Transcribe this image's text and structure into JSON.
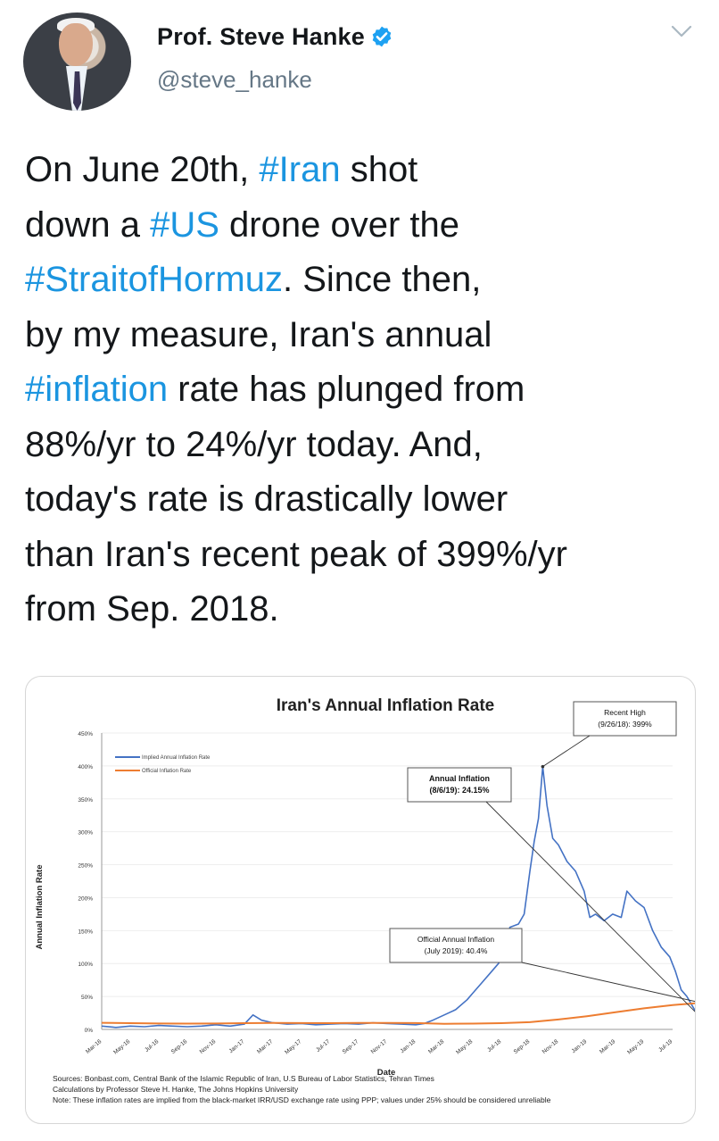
{
  "author": {
    "name": "Prof. Steve Hanke",
    "handle": "@steve_hanke",
    "verified": true,
    "avatar_icon": "profile-photo"
  },
  "menu_icon": "chevron-down-icon",
  "tweet": {
    "segments": [
      [
        {
          "t": "On June 20th, ",
          "h": false
        },
        {
          "t": "#Iran",
          "h": true
        },
        {
          "t": " shot",
          "h": false
        }
      ],
      [
        {
          "t": "down a ",
          "h": false
        },
        {
          "t": "#US",
          "h": true
        },
        {
          "t": " drone over the",
          "h": false
        }
      ],
      [
        {
          "t": "#StraitofHormuz",
          "h": true
        },
        {
          "t": ". Since then,",
          "h": false
        }
      ],
      [
        {
          "t": "by my measure, Iran's annual",
          "h": false
        }
      ],
      [
        {
          "t": "#inflation",
          "h": true
        },
        {
          "t": " rate has plunged from",
          "h": false
        }
      ],
      [
        {
          "t": "88%/yr to 24%/yr today. And,",
          "h": false
        }
      ],
      [
        {
          "t": "today's rate is drastically lower",
          "h": false
        }
      ],
      [
        {
          "t": "than Iran's recent peak of 399%/yr",
          "h": false
        }
      ],
      [
        {
          "t": "from Sep. 2018.",
          "h": false
        }
      ]
    ]
  },
  "colors": {
    "hashtag": "#1b95e0",
    "text": "#14171a",
    "muted": "#657786",
    "verified": "#1da1f2",
    "implied_series": "#4472c4",
    "official_series": "#ed7d31"
  },
  "chart_data": {
    "type": "line",
    "title": "Iran's Annual Inflation Rate",
    "xlabel": "Date",
    "ylabel": "Annual Inflation Rate",
    "ylim": [
      0,
      450
    ],
    "yticks": [
      "0%",
      "50%",
      "100%",
      "150%",
      "200%",
      "250%",
      "300%",
      "350%",
      "400%",
      "450%"
    ],
    "x_ticks": [
      "Mar-16",
      "May-16",
      "Jul-16",
      "Sep-16",
      "Nov-16",
      "Jan-17",
      "Mar-17",
      "May-17",
      "Jul-17",
      "Sep-17",
      "Nov-17",
      "Jan-18",
      "Mar-18",
      "May-18",
      "Jul-18",
      "Sep-18",
      "Nov-18",
      "Jan-19",
      "Mar-19",
      "May-19",
      "Jul-19"
    ],
    "legend_position": "top-left",
    "series": [
      {
        "name": "Implied Annual Inflation Rate",
        "color": "#4472c4",
        "points": [
          [
            0,
            5
          ],
          [
            0.5,
            3
          ],
          [
            1,
            5
          ],
          [
            1.5,
            4
          ],
          [
            2,
            6
          ],
          [
            2.5,
            5
          ],
          [
            3,
            4
          ],
          [
            3.5,
            5
          ],
          [
            4,
            7
          ],
          [
            4.5,
            5
          ],
          [
            5,
            8
          ],
          [
            5.3,
            22
          ],
          [
            5.6,
            14
          ],
          [
            6,
            10
          ],
          [
            6.5,
            8
          ],
          [
            7,
            9
          ],
          [
            7.5,
            7
          ],
          [
            8,
            8
          ],
          [
            8.5,
            9
          ],
          [
            9,
            8
          ],
          [
            9.5,
            10
          ],
          [
            10,
            9
          ],
          [
            10.5,
            8
          ],
          [
            11,
            7
          ],
          [
            11.3,
            9
          ],
          [
            11.6,
            14
          ],
          [
            12,
            22
          ],
          [
            12.4,
            30
          ],
          [
            12.8,
            45
          ],
          [
            13,
            55
          ],
          [
            13.3,
            70
          ],
          [
            13.6,
            85
          ],
          [
            13.9,
            100
          ],
          [
            14.1,
            115
          ],
          [
            14.3,
            155
          ],
          [
            14.6,
            160
          ],
          [
            14.8,
            175
          ],
          [
            15,
            240
          ],
          [
            15.15,
            285
          ],
          [
            15.3,
            320
          ],
          [
            15.45,
            399
          ],
          [
            15.6,
            340
          ],
          [
            15.8,
            290
          ],
          [
            16,
            280
          ],
          [
            16.3,
            255
          ],
          [
            16.6,
            240
          ],
          [
            16.9,
            210
          ],
          [
            17.1,
            170
          ],
          [
            17.3,
            175
          ],
          [
            17.6,
            165
          ],
          [
            17.9,
            175
          ],
          [
            18.2,
            170
          ],
          [
            18.4,
            210
          ],
          [
            18.7,
            195
          ],
          [
            19,
            185
          ],
          [
            19.3,
            150
          ],
          [
            19.6,
            125
          ],
          [
            19.9,
            110
          ],
          [
            20.1,
            88
          ],
          [
            20.3,
            60
          ],
          [
            20.5,
            50
          ],
          [
            20.7,
            35
          ],
          [
            20.85,
            24
          ],
          [
            21,
            18
          ]
        ]
      },
      {
        "name": "Official Inflation Rate",
        "color": "#ed7d31",
        "points": [
          [
            0,
            10
          ],
          [
            1,
            9.5
          ],
          [
            2,
            9
          ],
          [
            3,
            8.8
          ],
          [
            4,
            9
          ],
          [
            5,
            9.5
          ],
          [
            6,
            9.8
          ],
          [
            7,
            9.6
          ],
          [
            8,
            9.5
          ],
          [
            9,
            9.8
          ],
          [
            10,
            9.8
          ],
          [
            11,
            9.6
          ],
          [
            12,
            8.5
          ],
          [
            13,
            8.8
          ],
          [
            14,
            9.5
          ],
          [
            15,
            11
          ],
          [
            16,
            15
          ],
          [
            17,
            20
          ],
          [
            18,
            26
          ],
          [
            19,
            32
          ],
          [
            20,
            37
          ],
          [
            21,
            40.4
          ]
        ]
      }
    ],
    "annotations": [
      {
        "lines": [
          "Recent High",
          "(9/26/18): 399%"
        ],
        "x": 15.45,
        "y": 399
      },
      {
        "lines": [
          "Annual Inflation",
          "(8/6/19): 24.15%"
        ],
        "x": 20.85,
        "y": 24.15
      },
      {
        "lines": [
          "Official Annual Inflation",
          "(July 2019): 40.4%"
        ],
        "x": 21,
        "y": 40.4
      }
    ],
    "sources": [
      "Sources: Bonbast.com, Central Bank of the Islamic Republic of Iran, U.S Bureau of Labor Statistics, Tehran Times",
      "Calculations by Professor Steve H. Hanke, The Johns Hopkins University",
      "Note: These inflation rates are implied from the black-market IRR/USD exchange rate using PPP; values under 25% should be considered unreliable"
    ]
  }
}
